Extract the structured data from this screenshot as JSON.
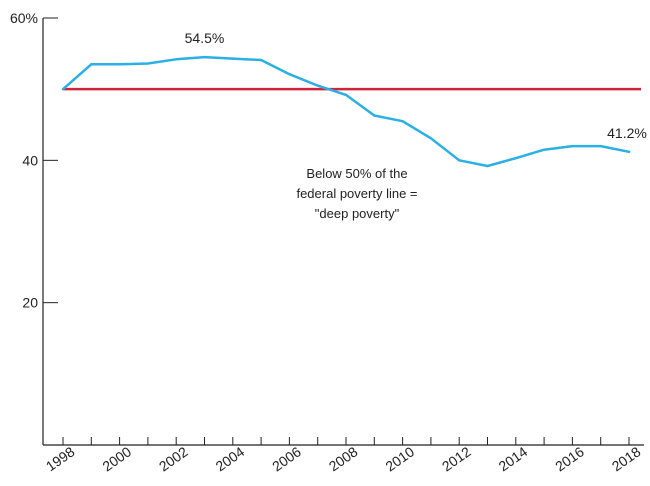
{
  "chart_data": {
    "type": "line",
    "x": [
      1998,
      1999,
      2000,
      2001,
      2002,
      2003,
      2004,
      2005,
      2006,
      2007,
      2008,
      2009,
      2010,
      2011,
      2012,
      2013,
      2014,
      2015,
      2016,
      2017,
      2018
    ],
    "series": [
      {
        "values": [
          50.0,
          53.5,
          53.5,
          53.6,
          54.2,
          54.5,
          54.3,
          54.1,
          52.1,
          50.5,
          49.2,
          46.3,
          45.5,
          43.1,
          40.0,
          39.2,
          40.3,
          41.5,
          42.0,
          42.0,
          41.2
        ],
        "color": "#2ab0e4"
      }
    ],
    "reference_line": {
      "y": 50,
      "color": "#d0243b"
    },
    "ylim": [
      0,
      60
    ],
    "xlim": [
      1998,
      2018
    ],
    "y_ticks": [
      20,
      40
    ],
    "y_tick_labels": [
      "20",
      "40"
    ],
    "y_top_label": "60%",
    "x_tick_labels": [
      "1998",
      "2000",
      "2002",
      "2004",
      "2006",
      "2008",
      "2010",
      "2012",
      "2014",
      "2016",
      "2018"
    ],
    "x_tick_values": [
      1998,
      2000,
      2002,
      2004,
      2006,
      2008,
      2010,
      2012,
      2014,
      2016,
      2018
    ],
    "data_labels": [
      {
        "x": 2003,
        "y": 54.5,
        "text": "54.5%"
      },
      {
        "x": 2018,
        "y": 41.2,
        "text": "41.2%"
      }
    ],
    "annotation": {
      "lines": [
        "Below 50% of the",
        "federal poverty line =",
        "\"deep poverty\""
      ]
    },
    "grid": false,
    "legend": "none"
  }
}
